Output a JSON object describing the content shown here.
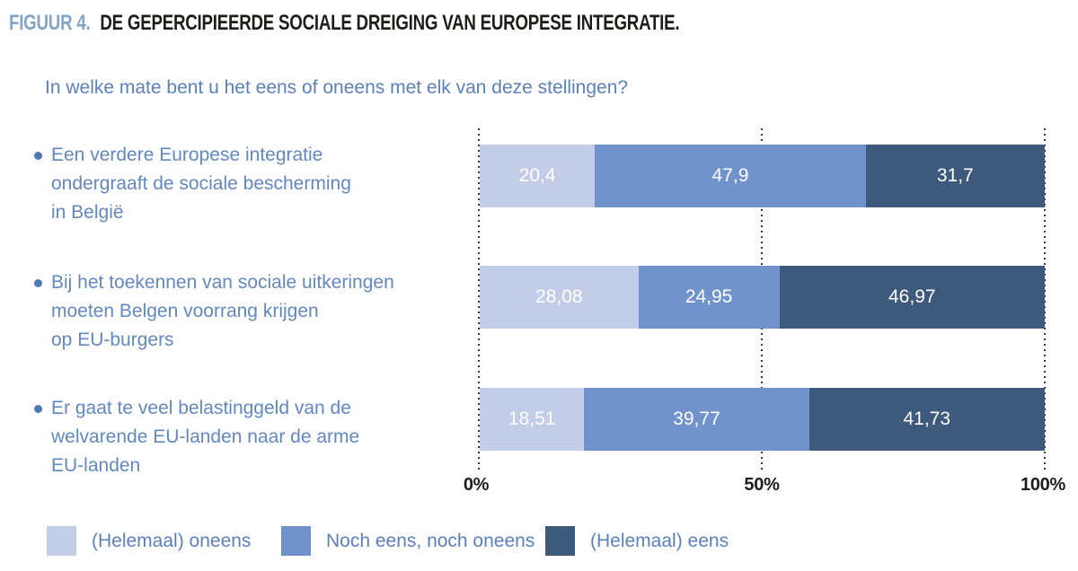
{
  "figure": {
    "label": "FIGUUR 4.",
    "title": "DE GEPERCIPIEERDE SOCIALE DREIGING VAN EUROPESE INTEGRATIE.",
    "question": "In welke mate bent u het eens of oneens met elk van deze stellingen?"
  },
  "chart_data": {
    "type": "bar",
    "orientation": "horizontal",
    "stacked": true,
    "unit": "percent",
    "xlim": [
      0,
      100
    ],
    "x_ticks": [
      "0%",
      "50%",
      "100%"
    ],
    "x_tick_values": [
      0,
      50,
      100
    ],
    "gridlines": "dotted vertical lines at 0%, 50%, 100%",
    "legend_position": "bottom",
    "categories": [
      "Een verdere Europese integratie ondergraaft de sociale bescherming in België",
      "Bij het toekennen van sociale uitkeringen moeten Belgen voorrang krijgen op EU-burgers",
      "Er gaat te veel belastinggeld van de welvarende EU-landen naar de arme EU-landen"
    ],
    "category_lines": [
      [
        "Een verdere Europese integratie",
        "ondergraaft de sociale bescherming",
        "in België"
      ],
      [
        "Bij het toekennen van sociale uitkeringen",
        "moeten Belgen voorrang krijgen",
        "op EU-burgers"
      ],
      [
        "Er gaat te veel belastinggeld van de",
        "welvarende EU-landen naar de arme",
        "EU-landen"
      ]
    ],
    "series": [
      {
        "name": "(Helemaal) oneens",
        "color": "#c4cde7",
        "values": [
          20.4,
          28.08,
          18.51
        ],
        "labels": [
          "20,4",
          "28,08",
          "18,51"
        ]
      },
      {
        "name": "Noch eens, noch oneens",
        "color": "#7093cb",
        "values": [
          47.9,
          24.95,
          39.77
        ],
        "labels": [
          "47,9",
          "24,95",
          "39,77"
        ]
      },
      {
        "name": "(Helemaal) eens",
        "color": "#3d5a7c",
        "values": [
          31.7,
          46.97,
          41.73
        ],
        "labels": [
          "31,7",
          "46,97",
          "41,73"
        ]
      }
    ]
  },
  "style_colors": {
    "figure_label": "#83a4c4",
    "title_text": "#1d1d1b",
    "body_text_blue": "#6288bf",
    "axis_text": "#1d1d1b",
    "bar_value_text": "#ffffff",
    "gridline": "#3a3a3a"
  }
}
